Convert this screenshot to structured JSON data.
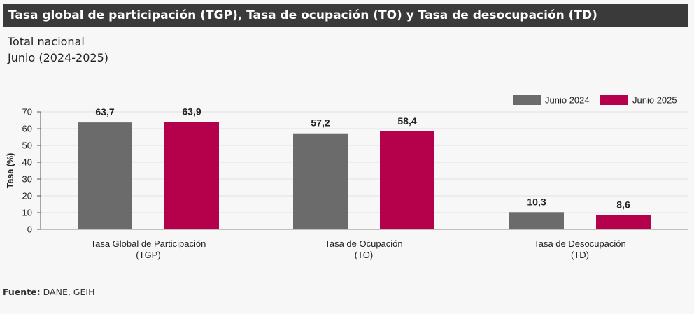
{
  "header": {
    "title": "Tasa global de participación (TGP), Tasa de ocupación (TO) y Tasa de desocupación (TD)",
    "subtitle_line1": "Total nacional",
    "subtitle_line2": "Junio (2024-2025)"
  },
  "footer": {
    "source_label": "Fuente:",
    "source_value": "DANE, GEIH"
  },
  "chart_data": {
    "type": "bar",
    "categories": [
      [
        "Tasa Global de Participación",
        "(TGP)"
      ],
      [
        "Tasa de Ocupación",
        "(TO)"
      ],
      [
        "Tasa de Desocupación",
        "(TD)"
      ]
    ],
    "series": [
      {
        "name": "Junio 2024",
        "values": [
          63.7,
          57.2,
          10.3
        ],
        "labels": [
          "63,7",
          "57,2",
          "10,3"
        ],
        "color": "#6b6b6b"
      },
      {
        "name": "Junio 2025",
        "values": [
          63.9,
          58.4,
          8.6
        ],
        "labels": [
          "63,9",
          "58,4",
          "8,6"
        ],
        "color": "#b5004b"
      }
    ],
    "ylabel": "Tasa (%)",
    "xlabel": "",
    "ylim": [
      0,
      70
    ],
    "yticks": [
      0,
      10,
      20,
      30,
      40,
      50,
      60,
      70
    ],
    "grid": true,
    "legend": "top-right"
  }
}
